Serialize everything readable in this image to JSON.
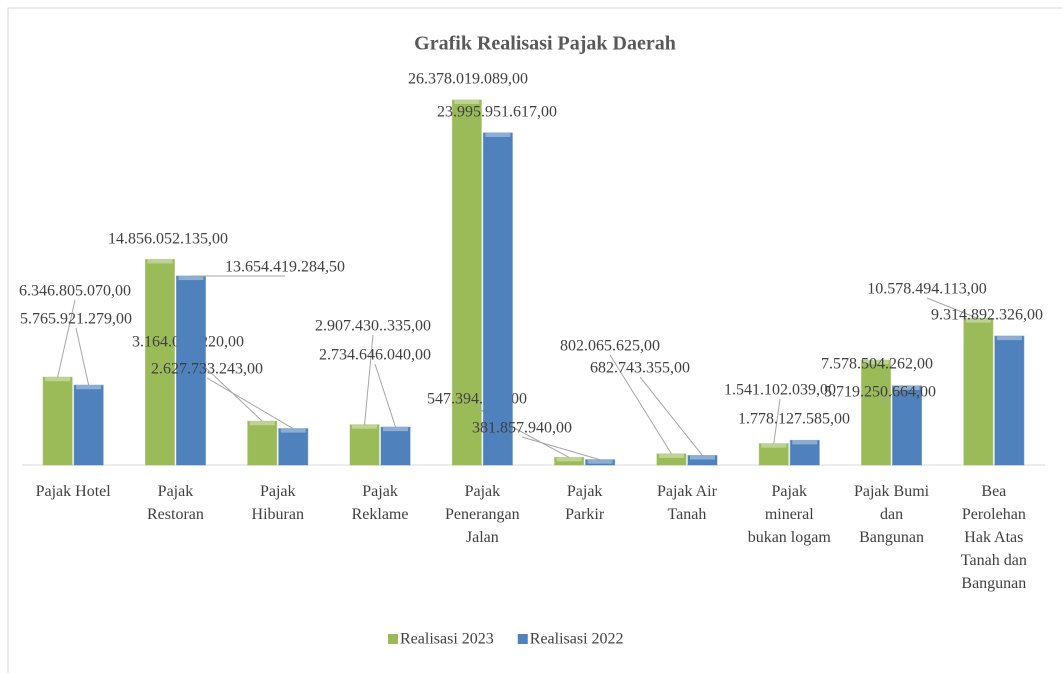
{
  "chart_data": {
    "type": "bar",
    "title": "Grafik Realisasi Pajak Daerah",
    "categories": [
      "Pajak Hotel",
      "Pajak Restoran",
      "Pajak Hiburan",
      "Pajak Reklame",
      "Pajak Penerangan Jalan",
      "Pajak Parkir",
      "Pajak Air Tanah",
      "Pajak mineral bukan logam",
      "Pajak Bumi dan Bangunan",
      "Bea Perolehan Hak Atas Tanah dan Bangunan"
    ],
    "series": [
      {
        "name": "Realisasi 2023",
        "color": "#9bbb59",
        "values": [
          6346805070,
          14856052135,
          3164060220,
          2907430335,
          26378019089,
          547394212,
          802065625,
          1541102039,
          7578504262,
          10578494113
        ],
        "value_labels": [
          "6.346.805.070,00",
          "14.856.052.135,00",
          "3.164.060.220,00",
          "2.907.430..335,00",
          "26.378.019.089,00",
          "547.394.212,00",
          "802.065.625,00",
          "1.541.102.039,00",
          "7.578.504.262,00",
          "10.578.494.113,00"
        ]
      },
      {
        "name": "Realisasi 2022",
        "color": "#4f81bd",
        "values": [
          5765921279,
          13654419284.5,
          2627733243,
          2734646040,
          23995951617,
          381857940,
          682743355,
          1778127585,
          5719250664,
          9314892326
        ],
        "value_labels": [
          "5.765.921.279,00",
          "13.654.419.284,50",
          "2.627.733.243,00",
          "2.734.646.040,00",
          "23.995.951.617,00",
          "381.857.940,00",
          "682.743.355,00",
          "1.778.127.585,00",
          "5.719.250.664,00",
          "9.314.892.326,00"
        ]
      }
    ],
    "legend": "bottom"
  }
}
